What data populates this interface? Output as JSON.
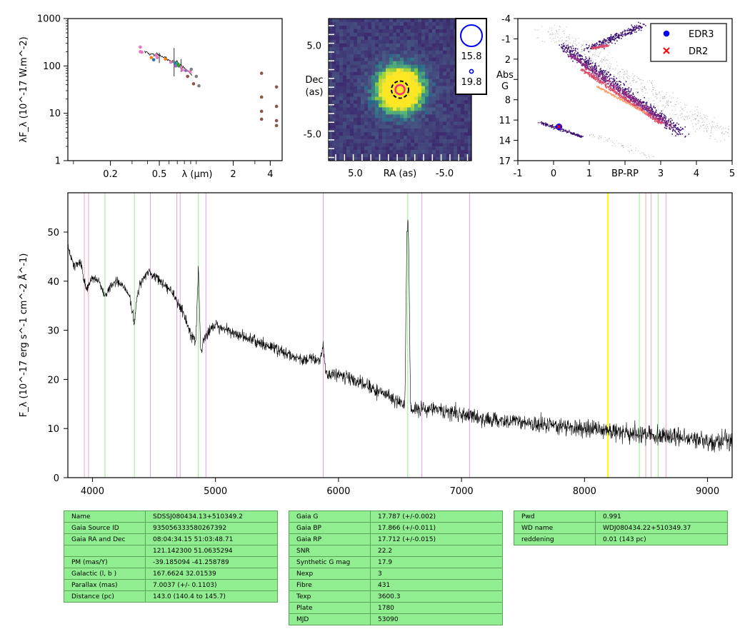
{
  "chart_data": [
    {
      "type": "scatter",
      "title": "",
      "xlabel": "λ (μm)",
      "ylabel": "λF_λ (10^-17 W.m^-2)",
      "xscale": "log",
      "yscale": "log",
      "xlim": [
        0.09,
        5.0
      ],
      "ylim": [
        1,
        1000
      ],
      "xticks": [
        {
          "v": 0.2,
          "label": "0.2"
        },
        {
          "v": 0.5,
          "label": "0.5"
        },
        {
          "v": 2,
          "label": "2"
        },
        {
          "v": 4,
          "label": "4"
        }
      ],
      "yticks": [
        {
          "v": 1,
          "label": "1"
        },
        {
          "v": 10,
          "label": "10"
        },
        {
          "v": 100,
          "label": "100"
        },
        {
          "v": 1000,
          "label": "1000"
        }
      ],
      "spectrum_curve": {
        "x": [
          0.38,
          0.4,
          0.42,
          0.44,
          0.46,
          0.48,
          0.5,
          0.52,
          0.54,
          0.56,
          0.58,
          0.6,
          0.62,
          0.65,
          0.68,
          0.7,
          0.72,
          0.75,
          0.78,
          0.8,
          0.84,
          0.88,
          0.92
        ],
        "y": [
          200,
          190,
          175,
          182,
          170,
          180,
          170,
          160,
          148,
          150,
          140,
          135,
          128,
          125,
          118,
          130,
          105,
          100,
          95,
          88,
          80,
          75,
          62
        ]
      },
      "photometry": [
        {
          "color": "#e377c2",
          "x": [
            0.35,
            0.35,
            0.36,
            0.47,
            0.48,
            0.62,
            0.75,
            0.77,
            0.89
          ],
          "y": [
            250,
            200,
            195,
            170,
            150,
            120,
            95,
            82,
            75
          ]
        },
        {
          "color": "#1f77b4",
          "x": [
            0.45,
            0.67
          ],
          "y": [
            135,
            115
          ]
        },
        {
          "color": "#ff7f0e",
          "x": [
            0.43,
            0.56
          ],
          "y": [
            150,
            140
          ]
        },
        {
          "color": "#2ca02c",
          "x": [
            0.71,
            0.72
          ],
          "y": [
            110,
            100
          ]
        },
        {
          "color": "#9467bd",
          "x": [
            0.68,
            0.82
          ],
          "y": [
            100,
            80
          ]
        },
        {
          "color": "#7f7f7f",
          "x": [
            0.65,
            0.91,
            1.0,
            1.05
          ],
          "y": [
            125,
            85,
            60,
            38
          ]
        },
        {
          "color": "#8c564b",
          "x": [
            0.85,
            0.95,
            3.4,
            3.4,
            3.4,
            3.4,
            4.5,
            4.5,
            4.5,
            4.5
          ],
          "y": [
            60,
            42,
            70,
            22,
            11,
            7.5,
            36,
            14,
            7,
            5.5
          ]
        }
      ]
    },
    {
      "type": "heatmap",
      "title": "",
      "xlabel": "RA (as)",
      "ylabel": "Dec (as)",
      "xlim": [
        8,
        -8
      ],
      "ylim": [
        -8,
        8
      ],
      "xticks": [
        {
          "v": 5.0,
          "label": "5.0"
        },
        {
          "v": -5.0,
          "label": "-5.0"
        }
      ],
      "yticks": [
        {
          "v": 5.0,
          "label": "5.0"
        },
        {
          "v": -5.0,
          "label": "-5.0"
        }
      ],
      "source": {
        "x": 0.0,
        "y": 0.0
      },
      "legend": [
        {
          "label": "15.8",
          "marker": "large-circle"
        },
        {
          "label": "19.8",
          "marker": "small-circle"
        }
      ]
    },
    {
      "type": "scatter",
      "title": "",
      "xlabel": "BP-RP",
      "ylabel": "Abs G",
      "xlim": [
        -1,
        5
      ],
      "ylim": [
        17,
        -4
      ],
      "yinverted": true,
      "xticks": [
        {
          "v": -1,
          "label": "-1"
        },
        {
          "v": 0,
          "label": "0"
        },
        {
          "v": 1,
          "label": "1"
        },
        {
          "v": 2,
          "label": ""
        },
        {
          "v": 3,
          "label": "3"
        },
        {
          "v": 4,
          "label": "4"
        },
        {
          "v": 5,
          "label": "5"
        }
      ],
      "yticks": [
        {
          "v": -4,
          "label": "-4"
        },
        {
          "v": -1,
          "label": "-1"
        },
        {
          "v": 2,
          "label": "2"
        },
        {
          "v": 5,
          "label": ""
        },
        {
          "v": 8,
          "label": "8"
        },
        {
          "v": 11,
          "label": "11"
        },
        {
          "v": 14,
          "label": "14"
        },
        {
          "v": 17,
          "label": "17"
        }
      ],
      "legend_position": "top-right",
      "series": [
        {
          "name": "EDR3",
          "color": "#0000ff",
          "marker": "circle",
          "x": [
            0.15
          ],
          "y": [
            12.0
          ]
        },
        {
          "name": "DR2",
          "color": "#ff0000",
          "marker": "x",
          "x": [
            0.15
          ],
          "y": [
            12.0
          ]
        }
      ]
    },
    {
      "type": "line",
      "title": "",
      "xlabel": "",
      "ylabel": "F_λ (10^-17 erg s^-1 cm^-2 Å^-1)",
      "xlim": [
        3800,
        9200
      ],
      "ylim": [
        0,
        58
      ],
      "xticks": [
        {
          "v": 4000,
          "label": "4000"
        },
        {
          "v": 5000,
          "label": "5000"
        },
        {
          "v": 6000,
          "label": "6000"
        },
        {
          "v": 7000,
          "label": "7000"
        },
        {
          "v": 8000,
          "label": "8000"
        },
        {
          "v": 9000,
          "label": "9000"
        }
      ],
      "yticks": [
        {
          "v": 0,
          "label": "0"
        },
        {
          "v": 10,
          "label": "10"
        },
        {
          "v": 20,
          "label": "20"
        },
        {
          "v": 30,
          "label": "30"
        },
        {
          "v": 40,
          "label": "40"
        },
        {
          "v": 50,
          "label": "50"
        }
      ],
      "spectrum": {
        "x": [
          3800,
          3850,
          3900,
          3950,
          4000,
          4050,
          4100,
          4150,
          4200,
          4250,
          4300,
          4330,
          4340,
          4360,
          4400,
          4450,
          4500,
          4550,
          4600,
          4650,
          4700,
          4750,
          4800,
          4840,
          4861,
          4880,
          4900,
          4950,
          5000,
          5100,
          5200,
          5300,
          5400,
          5500,
          5600,
          5700,
          5800,
          5850,
          5875,
          5900,
          5950,
          6000,
          6100,
          6200,
          6300,
          6400,
          6500,
          6540,
          6555,
          6563,
          6570,
          6585,
          6600,
          6650,
          6700,
          6800,
          6900,
          7000,
          7200,
          7400,
          7600,
          7800,
          8000,
          8200,
          8400,
          8600,
          8800,
          9000,
          9200
        ],
        "y": [
          47,
          43,
          44,
          38,
          41,
          40,
          37,
          39,
          40,
          39,
          37,
          33,
          31,
          37,
          40,
          42,
          41,
          40,
          39,
          38,
          35,
          33,
          29,
          28,
          43,
          25,
          28,
          30,
          31,
          30,
          29,
          28,
          27,
          26,
          25,
          24,
          24,
          24,
          27,
          21,
          21,
          21,
          20,
          19,
          18,
          17,
          15,
          15,
          48,
          52,
          50,
          15,
          14,
          14,
          14,
          14,
          13,
          13,
          12,
          11.5,
          11,
          10.5,
          10,
          9.5,
          9,
          8.5,
          8,
          7.5,
          7
        ]
      },
      "markers": [
        {
          "x": 3934,
          "color": "#f4a6b8"
        },
        {
          "x": 3968,
          "color": "#f4a6b8"
        },
        {
          "x": 4102,
          "color": "#90ee90"
        },
        {
          "x": 4341,
          "color": "#90ee90"
        },
        {
          "x": 4471,
          "color": "#dda0dd"
        },
        {
          "x": 4686,
          "color": "#dda0dd"
        },
        {
          "x": 4713,
          "color": "#dda0dd"
        },
        {
          "x": 4861,
          "color": "#90ee90"
        },
        {
          "x": 4922,
          "color": "#dda0dd"
        },
        {
          "x": 5876,
          "color": "#dda0dd"
        },
        {
          "x": 6563,
          "color": "#90ee90"
        },
        {
          "x": 6678,
          "color": "#dda0dd"
        },
        {
          "x": 7065,
          "color": "#dda0dd"
        },
        {
          "x": 8190,
          "color": "#ffff00"
        },
        {
          "x": 8446,
          "color": "#90ee90"
        },
        {
          "x": 8498,
          "color": "#f4a6b8"
        },
        {
          "x": 8542,
          "color": "#f4a6b8"
        },
        {
          "x": 8598,
          "color": "#90ee90"
        },
        {
          "x": 8662,
          "color": "#f4a6b8"
        }
      ]
    }
  ],
  "tables": [
    {
      "rows": [
        [
          "Name",
          "SDSSJ080434.13+510349.2"
        ],
        [
          "Gaia Source ID",
          "935056333580267392"
        ],
        [
          "Gaia RA and Dec",
          "08:04:34.15    51:03:48.71"
        ],
        [
          "",
          "121.142300    51.0635294"
        ],
        [
          "PM (mas/Y)",
          "-39.185094    -41.258789"
        ],
        [
          "Galactic (l, b )",
          "167.6624    32.01539"
        ],
        [
          "Parallax (mas)",
          "7.0037 (+/- 0.1103)"
        ],
        [
          "Distance (pc)",
          "143.0 (140.4 to 145.7)"
        ]
      ]
    },
    {
      "rows": [
        [
          "Gaia G",
          "17.787 (+/-0.002)"
        ],
        [
          "Gaia BP",
          "17.866 (+/-0.011)"
        ],
        [
          "Gaia RP",
          "17.712 (+/-0.015)"
        ],
        [
          "SNR",
          "22.2"
        ],
        [
          "Synthetic G mag",
          "17.9"
        ],
        [
          "Nexp",
          "3"
        ],
        [
          "Fibre",
          "431"
        ],
        [
          "Texp",
          "3600.3"
        ],
        [
          "Plate",
          "1780"
        ],
        [
          "MJD",
          "53090"
        ]
      ]
    },
    {
      "rows": [
        [
          "Pwd",
          "0.991"
        ],
        [
          "WD name",
          "WDJ080434.22+510349.37"
        ],
        [
          "reddening",
          "0.01 (143 pc)"
        ]
      ]
    }
  ]
}
